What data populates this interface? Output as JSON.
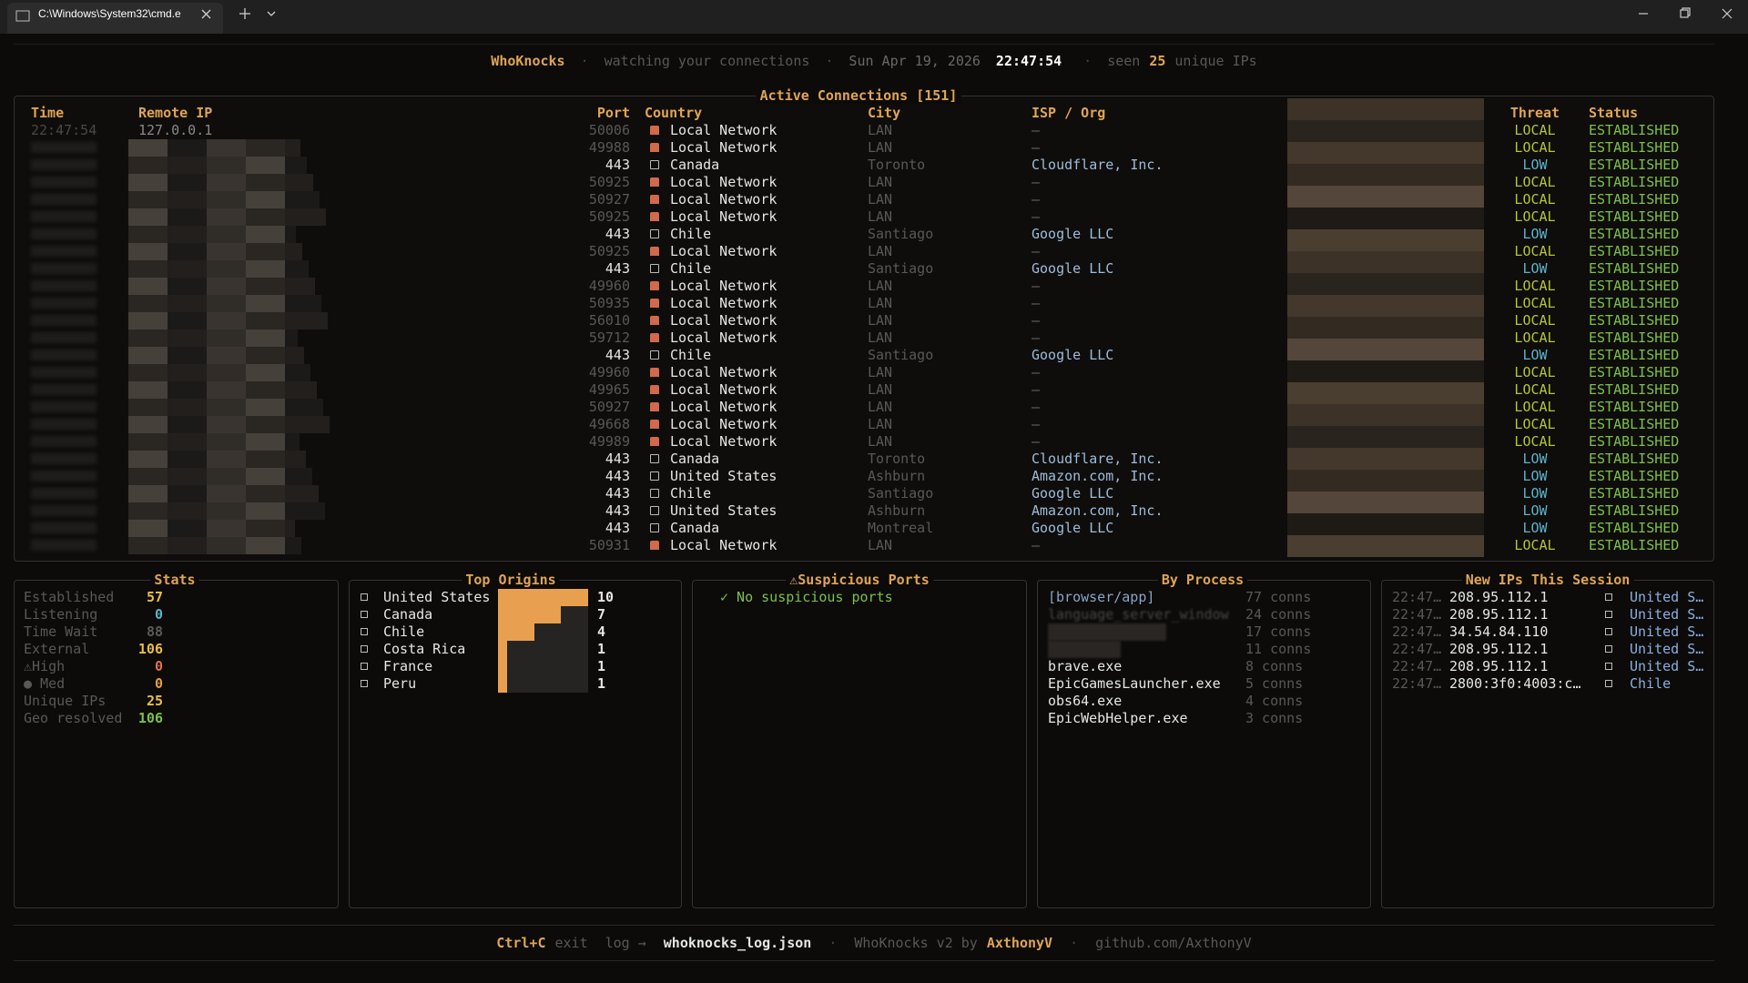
{
  "window": {
    "tab_title": "C:\\Windows\\System32\\cmd.e"
  },
  "header": {
    "app_name": "WhoKnocks",
    "separator": "·",
    "tagline": "watching your connections",
    "date": "Sun Apr 19, 2026",
    "time": "22:47:54",
    "seen_label": "seen",
    "seen_count": 25,
    "seen_suffix": "unique IPs"
  },
  "connections": {
    "title": "Active Connections [151]",
    "columns": [
      "Time",
      "Remote IP",
      "Port",
      "Country",
      "City",
      "ISP / Org",
      "Threat",
      "Status"
    ],
    "threat_colors": {
      "LOCAL": "#b4c43c",
      "LOW": "#5cb4cc"
    },
    "rows": [
      {
        "time": "22:47:54",
        "ip": "127.0.0.1",
        "port": 50006,
        "country": "Local Network",
        "city": "LAN",
        "isp": "–",
        "threat": "LOCAL",
        "status": "ESTABLISHED"
      },
      {
        "port": 49988,
        "country": "Local Network",
        "city": "LAN",
        "isp": "–",
        "threat": "LOCAL",
        "status": "ESTABLISHED"
      },
      {
        "port": 443,
        "country": "Canada",
        "city": "Toronto",
        "isp": "Cloudflare, Inc.",
        "threat": "LOW",
        "status": "ESTABLISHED"
      },
      {
        "port": 50925,
        "country": "Local Network",
        "city": "LAN",
        "isp": "–",
        "threat": "LOCAL",
        "status": "ESTABLISHED"
      },
      {
        "port": 50927,
        "country": "Local Network",
        "city": "LAN",
        "isp": "–",
        "threat": "LOCAL",
        "status": "ESTABLISHED"
      },
      {
        "port": 50925,
        "country": "Local Network",
        "city": "LAN",
        "isp": "–",
        "threat": "LOCAL",
        "status": "ESTABLISHED"
      },
      {
        "port": 443,
        "country": "Chile",
        "city": "Santiago",
        "isp": "Google LLC",
        "threat": "LOW",
        "status": "ESTABLISHED"
      },
      {
        "port": 50925,
        "country": "Local Network",
        "city": "LAN",
        "isp": "–",
        "threat": "LOCAL",
        "status": "ESTABLISHED"
      },
      {
        "port": 443,
        "country": "Chile",
        "city": "Santiago",
        "isp": "Google LLC",
        "threat": "LOW",
        "status": "ESTABLISHED"
      },
      {
        "port": 49960,
        "country": "Local Network",
        "city": "LAN",
        "isp": "–",
        "threat": "LOCAL",
        "status": "ESTABLISHED"
      },
      {
        "port": 50935,
        "country": "Local Network",
        "city": "LAN",
        "isp": "–",
        "threat": "LOCAL",
        "status": "ESTABLISHED"
      },
      {
        "port": 56010,
        "country": "Local Network",
        "city": "LAN",
        "isp": "–",
        "threat": "LOCAL",
        "status": "ESTABLISHED"
      },
      {
        "port": 59712,
        "country": "Local Network",
        "city": "LAN",
        "isp": "–",
        "threat": "LOCAL",
        "status": "ESTABLISHED"
      },
      {
        "port": 443,
        "country": "Chile",
        "city": "Santiago",
        "isp": "Google LLC",
        "threat": "LOW",
        "status": "ESTABLISHED"
      },
      {
        "port": 49960,
        "country": "Local Network",
        "city": "LAN",
        "isp": "–",
        "threat": "LOCAL",
        "status": "ESTABLISHED"
      },
      {
        "port": 49965,
        "country": "Local Network",
        "city": "LAN",
        "isp": "–",
        "threat": "LOCAL",
        "status": "ESTABLISHED"
      },
      {
        "port": 50927,
        "country": "Local Network",
        "city": "LAN",
        "isp": "–",
        "threat": "LOCAL",
        "status": "ESTABLISHED"
      },
      {
        "port": 49668,
        "country": "Local Network",
        "city": "LAN",
        "isp": "–",
        "threat": "LOCAL",
        "status": "ESTABLISHED"
      },
      {
        "port": 49989,
        "country": "Local Network",
        "city": "LAN",
        "isp": "–",
        "threat": "LOCAL",
        "status": "ESTABLISHED"
      },
      {
        "port": 443,
        "country": "Canada",
        "city": "Toronto",
        "isp": "Cloudflare, Inc.",
        "threat": "LOW",
        "status": "ESTABLISHED"
      },
      {
        "port": 443,
        "country": "United States",
        "city": "Ashburn",
        "isp": "Amazon.com, Inc.",
        "threat": "LOW",
        "status": "ESTABLISHED"
      },
      {
        "port": 443,
        "country": "Chile",
        "city": "Santiago",
        "isp": "Google LLC",
        "threat": "LOW",
        "status": "ESTABLISHED"
      },
      {
        "port": 443,
        "country": "United States",
        "city": "Ashburn",
        "isp": "Amazon.com, Inc.",
        "threat": "LOW",
        "status": "ESTABLISHED"
      },
      {
        "port": 443,
        "country": "Canada",
        "city": "Montreal",
        "isp": "Google LLC",
        "threat": "LOW",
        "status": "ESTABLISHED"
      },
      {
        "port": 50931,
        "country": "Local Network",
        "city": "LAN",
        "isp": "–",
        "threat": "LOCAL",
        "status": "ESTABLISHED"
      }
    ]
  },
  "stats": {
    "title": "Stats",
    "items": [
      {
        "label": "Established",
        "value": 57,
        "color": "#e8c040"
      },
      {
        "label": "Listening",
        "value": 0,
        "color": "#5cb4cc"
      },
      {
        "label": "Time Wait",
        "value": 88,
        "color": "#5a5a5a"
      },
      {
        "label": "External",
        "value": 106,
        "color": "#e8c040"
      },
      {
        "label": "⚠High",
        "value": 0,
        "color": "#e07050"
      },
      {
        "label": "● Med",
        "value": 0,
        "color": "#e0a040"
      },
      {
        "label": "Unique IPs",
        "value": 25,
        "color": "#e8c040"
      },
      {
        "label": "Geo resolved",
        "value": 106,
        "color": "#7cc04a"
      }
    ]
  },
  "top_origins": {
    "title": "Top Origins",
    "color": "#e8a050",
    "items": [
      {
        "country": "United States",
        "count": 10
      },
      {
        "country": "Canada",
        "count": 7
      },
      {
        "country": "Chile",
        "count": 4
      },
      {
        "country": "Costa Rica",
        "count": 1
      },
      {
        "country": "France",
        "count": 1
      },
      {
        "country": "Peru",
        "count": 1
      }
    ]
  },
  "suspicious_ports": {
    "title": "⚠Suspicious Ports",
    "message": "✓ No suspicious ports"
  },
  "by_process": {
    "title": "By Process",
    "items": [
      {
        "name": "[browser/app]",
        "conns": "77 conns"
      },
      {
        "name": "language_server_window",
        "conns": "24 conns"
      },
      {
        "conns": "17 conns"
      },
      {
        "conns": "11 conns"
      },
      {
        "name": "brave.exe",
        "conns": "8 conns"
      },
      {
        "name": "EpicGamesLauncher.exe",
        "conns": "5 conns"
      },
      {
        "name": "obs64.exe",
        "conns": "4 conns"
      },
      {
        "name": "EpicWebHelper.exe",
        "conns": "3 conns"
      }
    ]
  },
  "new_ips": {
    "title": "New IPs This Session",
    "items": [
      {
        "time": "22:47…",
        "ip": "208.95.112.1",
        "country": "United S…"
      },
      {
        "time": "22:47…",
        "ip": "208.95.112.1",
        "country": "United S…"
      },
      {
        "time": "22:47…",
        "ip": "34.54.84.110",
        "country": "United S…"
      },
      {
        "time": "22:47…",
        "ip": "208.95.112.1",
        "country": "United S…"
      },
      {
        "time": "22:47…",
        "ip": "208.95.112.1",
        "country": "United S…"
      },
      {
        "time": "22:47…",
        "ip": "2800:3f0:4003:c…",
        "country": "Chile"
      }
    ]
  },
  "footer": {
    "key": "Ctrl+C",
    "key_action": "exit",
    "log_label": "log →",
    "log_file": "whoknocks_log.json",
    "separator": "·",
    "credit": "WhoKnocks v2 by",
    "author": "AxthonyV",
    "url": "github.com/AxthonyV"
  }
}
